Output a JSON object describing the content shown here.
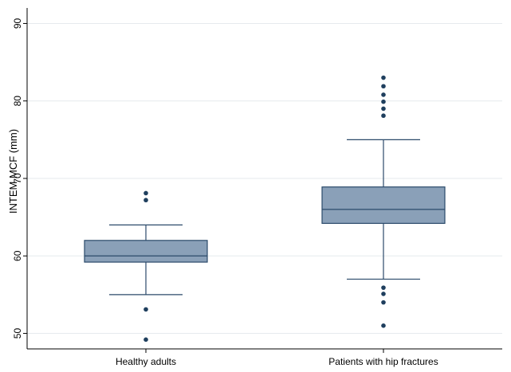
{
  "chart_data": {
    "type": "box",
    "title": "",
    "xlabel": "",
    "ylabel": "INTEM MCF (mm)",
    "ylim": [
      48,
      92
    ],
    "yticks": [
      "50",
      "60",
      "70",
      "80",
      "90"
    ],
    "grid": "horizontal",
    "box_color": "#8aa0b8",
    "line_color": "#2b4a6a",
    "outlier_color": "#1f3f5e",
    "groups": [
      {
        "label": "Healthy adults",
        "whisker_low": 55,
        "q1": 59.2,
        "median": 60,
        "q3": 62,
        "whisker_high": 64,
        "outliers": [
          49.2,
          53.1,
          67.2,
          68.1
        ]
      },
      {
        "label": "Patients with hip fractures",
        "whisker_low": 57,
        "q1": 64.2,
        "median": 66,
        "q3": 68.9,
        "whisker_high": 75,
        "outliers": [
          51,
          54,
          55.1,
          55.9,
          78.1,
          79,
          79.9,
          80.8,
          81.9,
          83
        ]
      }
    ]
  }
}
